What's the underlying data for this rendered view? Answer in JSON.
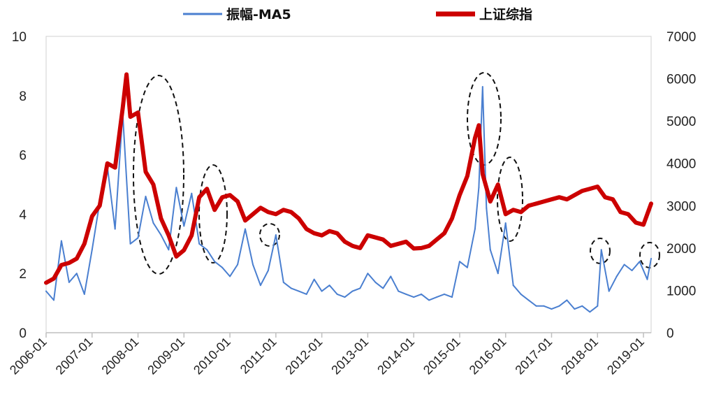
{
  "chart_data": {
    "type": "line",
    "title": "",
    "xlabel": "",
    "ylabel_left": "",
    "ylabel_right": "",
    "x_ticks": [
      "2006-01",
      "2007-01",
      "2008-01",
      "2009-01",
      "2010-01",
      "2011-01",
      "2012-01",
      "2013-01",
      "2014-01",
      "2015-01",
      "2016-01",
      "2017-01",
      "2018-01",
      "2019-01"
    ],
    "x_range": [
      "2006-01",
      "2019-03"
    ],
    "y_left": {
      "ticks": [
        "0",
        "2",
        "4",
        "6",
        "8",
        "10"
      ],
      "range": [
        0,
        10
      ]
    },
    "y_right": {
      "ticks": [
        "0",
        "1000",
        "2000",
        "3000",
        "4000",
        "5000",
        "6000",
        "7000"
      ],
      "range": [
        0,
        7000
      ]
    },
    "grid": false,
    "legend_position": "top",
    "series": [
      {
        "name": "振幅-MA5",
        "axis": "left",
        "color": "#4a7fd0",
        "x": [
          "2006-01",
          "2006-03",
          "2006-05",
          "2006-07",
          "2006-09",
          "2006-11",
          "2007-01",
          "2007-03",
          "2007-05",
          "2007-07",
          "2007-09",
          "2007-11",
          "2008-01",
          "2008-03",
          "2008-05",
          "2008-07",
          "2008-09",
          "2008-11",
          "2009-01",
          "2009-03",
          "2009-05",
          "2009-07",
          "2009-09",
          "2009-11",
          "2010-01",
          "2010-03",
          "2010-05",
          "2010-07",
          "2010-09",
          "2010-11",
          "2011-01",
          "2011-03",
          "2011-05",
          "2011-07",
          "2011-09",
          "2011-11",
          "2012-01",
          "2012-03",
          "2012-05",
          "2012-07",
          "2012-09",
          "2012-11",
          "2013-01",
          "2013-03",
          "2013-05",
          "2013-07",
          "2013-09",
          "2013-11",
          "2014-01",
          "2014-03",
          "2014-05",
          "2014-07",
          "2014-09",
          "2014-11",
          "2015-01",
          "2015-03",
          "2015-05",
          "2015-06",
          "2015-07",
          "2015-08",
          "2015-09",
          "2015-11",
          "2016-01",
          "2016-03",
          "2016-05",
          "2016-07",
          "2016-09",
          "2016-11",
          "2017-01",
          "2017-03",
          "2017-05",
          "2017-07",
          "2017-09",
          "2017-11",
          "2018-01",
          "2018-02",
          "2018-04",
          "2018-06",
          "2018-08",
          "2018-10",
          "2018-12",
          "2019-02",
          "2019-03"
        ],
        "values": [
          1.4,
          1.1,
          3.1,
          1.7,
          2.0,
          1.3,
          2.8,
          4.4,
          5.6,
          3.5,
          7.4,
          3.0,
          3.2,
          4.6,
          3.7,
          3.3,
          2.8,
          4.9,
          3.6,
          4.7,
          3.0,
          2.8,
          2.4,
          2.2,
          1.9,
          2.3,
          3.5,
          2.3,
          1.6,
          2.1,
          3.3,
          1.7,
          1.5,
          1.4,
          1.3,
          1.8,
          1.4,
          1.6,
          1.3,
          1.2,
          1.4,
          1.5,
          2.0,
          1.7,
          1.5,
          1.9,
          1.4,
          1.3,
          1.2,
          1.3,
          1.1,
          1.2,
          1.3,
          1.2,
          2.4,
          2.2,
          3.5,
          4.9,
          8.3,
          4.2,
          2.8,
          2.0,
          3.7,
          1.6,
          1.3,
          1.1,
          0.9,
          0.9,
          0.8,
          0.9,
          1.1,
          0.8,
          0.9,
          0.7,
          0.9,
          2.8,
          1.4,
          1.9,
          2.3,
          2.1,
          2.4,
          1.8,
          2.5
        ]
      },
      {
        "name": "上证综指",
        "axis": "right",
        "color": "#cc0000",
        "x": [
          "2006-01",
          "2006-03",
          "2006-05",
          "2006-07",
          "2006-09",
          "2006-11",
          "2007-01",
          "2007-03",
          "2007-05",
          "2007-07",
          "2007-09",
          "2007-10",
          "2007-11",
          "2008-01",
          "2008-03",
          "2008-05",
          "2008-07",
          "2008-09",
          "2008-11",
          "2009-01",
          "2009-03",
          "2009-05",
          "2009-07",
          "2009-09",
          "2009-11",
          "2010-01",
          "2010-03",
          "2010-05",
          "2010-07",
          "2010-09",
          "2010-11",
          "2011-01",
          "2011-03",
          "2011-05",
          "2011-07",
          "2011-09",
          "2011-11",
          "2012-01",
          "2012-03",
          "2012-05",
          "2012-07",
          "2012-09",
          "2012-11",
          "2013-01",
          "2013-03",
          "2013-05",
          "2013-07",
          "2013-09",
          "2013-11",
          "2014-01",
          "2014-03",
          "2014-05",
          "2014-07",
          "2014-09",
          "2014-11",
          "2015-01",
          "2015-03",
          "2015-05",
          "2015-06",
          "2015-07",
          "2015-09",
          "2015-11",
          "2016-01",
          "2016-03",
          "2016-05",
          "2016-07",
          "2016-09",
          "2016-11",
          "2017-01",
          "2017-03",
          "2017-05",
          "2017-07",
          "2017-09",
          "2017-11",
          "2018-01",
          "2018-03",
          "2018-05",
          "2018-07",
          "2018-09",
          "2018-11",
          "2019-01",
          "2019-03"
        ],
        "values": [
          1180,
          1280,
          1600,
          1650,
          1750,
          2100,
          2750,
          3000,
          4000,
          3900,
          5300,
          6100,
          5100,
          5200,
          3800,
          3500,
          2700,
          2300,
          1800,
          1950,
          2300,
          3200,
          3400,
          2900,
          3200,
          3250,
          3100,
          2650,
          2800,
          2950,
          2850,
          2800,
          2900,
          2850,
          2700,
          2450,
          2350,
          2300,
          2400,
          2350,
          2150,
          2050,
          2000,
          2300,
          2250,
          2200,
          2050,
          2100,
          2150,
          1990,
          2000,
          2050,
          2200,
          2350,
          2700,
          3250,
          3700,
          4600,
          4900,
          3750,
          3100,
          3500,
          2800,
          2900,
          2850,
          3000,
          3050,
          3100,
          3150,
          3200,
          3150,
          3250,
          3350,
          3400,
          3450,
          3200,
          3150,
          2850,
          2800,
          2600,
          2550,
          3050
        ]
      }
    ]
  }
}
